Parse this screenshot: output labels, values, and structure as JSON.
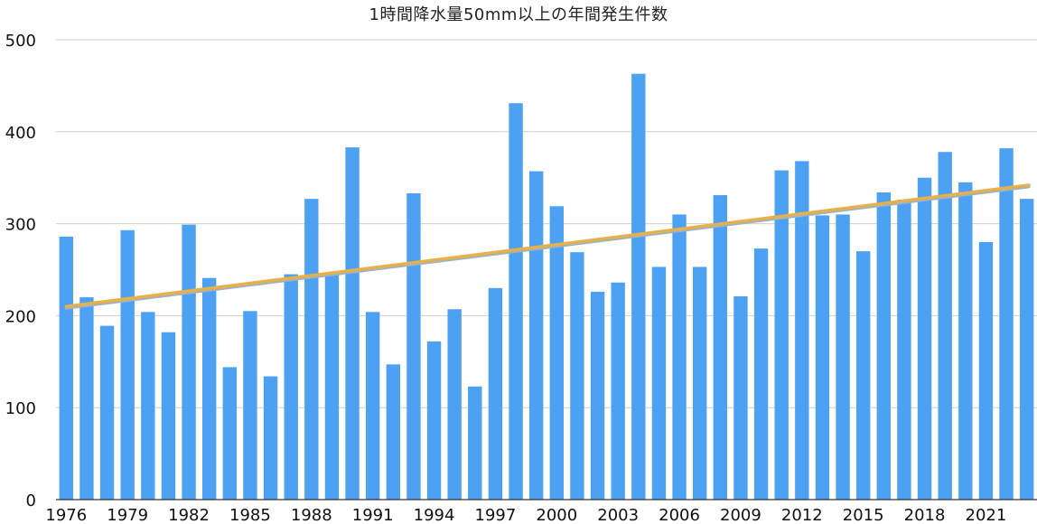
{
  "chart_data": {
    "type": "bar",
    "title": "1時間降水量50mm以上の年間発生件数",
    "xlabel": "",
    "ylabel": "",
    "ylim": [
      0,
      500
    ],
    "yticks": [
      "0",
      "100",
      "200",
      "300",
      "400",
      "500"
    ],
    "grid": true,
    "legend": "none",
    "years": [
      1976,
      1977,
      1978,
      1979,
      1980,
      1981,
      1982,
      1983,
      1984,
      1985,
      1986,
      1987,
      1988,
      1989,
      1990,
      1991,
      1992,
      1993,
      1994,
      1995,
      1996,
      1997,
      1998,
      1999,
      2000,
      2001,
      2002,
      2003,
      2004,
      2005,
      2006,
      2007,
      2008,
      2009,
      2010,
      2011,
      2012,
      2013,
      2014,
      2015,
      2016,
      2017,
      2018,
      2019,
      2020,
      2021,
      2022,
      2023
    ],
    "xtick_labels": [
      "1976",
      "1979",
      "1982",
      "1985",
      "1988",
      "1991",
      "1994",
      "1997",
      "2000",
      "2003",
      "2006",
      "2009",
      "2012",
      "2015",
      "2018",
      "2021"
    ],
    "values": [
      286,
      220,
      189,
      293,
      204,
      182,
      299,
      241,
      144,
      205,
      134,
      245,
      327,
      247,
      383,
      204,
      147,
      333,
      172,
      207,
      123,
      230,
      431,
      357,
      319,
      269,
      226,
      236,
      463,
      253,
      310,
      253,
      331,
      221,
      273,
      358,
      368,
      309,
      310,
      270,
      334,
      326,
      350,
      378,
      345,
      280,
      382,
      327
    ],
    "trend": {
      "start": 210,
      "end": 342
    },
    "colors": {
      "bar": "#4da1f2",
      "trend": "#e6b04a",
      "trend_shadow": "#9db2c6",
      "grid": "#d0d0d0",
      "axis": "#333333",
      "text": "#111111"
    }
  }
}
